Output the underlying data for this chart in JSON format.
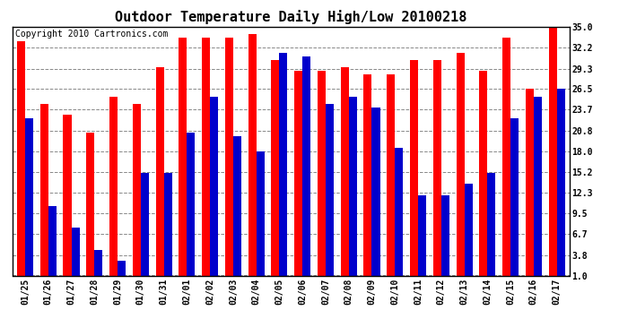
{
  "title": "Outdoor Temperature Daily High/Low 20100218",
  "copyright": "Copyright 2010 Cartronics.com",
  "labels": [
    "01/25",
    "01/26",
    "01/27",
    "01/28",
    "01/29",
    "01/30",
    "01/31",
    "02/01",
    "02/02",
    "02/03",
    "02/04",
    "02/05",
    "02/06",
    "02/07",
    "02/08",
    "02/09",
    "02/10",
    "02/11",
    "02/12",
    "02/13",
    "02/14",
    "02/15",
    "02/16",
    "02/17"
  ],
  "highs": [
    33.0,
    24.5,
    23.0,
    20.5,
    25.5,
    24.5,
    29.5,
    33.5,
    33.5,
    33.5,
    34.0,
    30.5,
    29.0,
    29.0,
    29.5,
    28.5,
    28.5,
    30.5,
    30.5,
    31.5,
    29.0,
    33.5,
    26.5,
    35.0
  ],
  "lows": [
    22.5,
    10.5,
    7.5,
    4.5,
    3.0,
    15.0,
    15.0,
    20.5,
    25.5,
    20.0,
    18.0,
    31.5,
    31.0,
    24.5,
    25.5,
    24.0,
    18.5,
    12.0,
    12.0,
    13.5,
    15.0,
    22.5,
    25.5,
    26.5
  ],
  "high_color": "#ff0000",
  "low_color": "#0000cc",
  "yticks": [
    1.0,
    3.8,
    6.7,
    9.5,
    12.3,
    15.2,
    18.0,
    20.8,
    23.7,
    26.5,
    29.3,
    32.2,
    35.0
  ],
  "ymin": 1.0,
  "ymax": 35.0,
  "background": "#ffffff",
  "grid_color": "#888888",
  "bar_width": 0.35,
  "title_fontsize": 11,
  "tick_fontsize": 7,
  "copyright_fontsize": 7
}
